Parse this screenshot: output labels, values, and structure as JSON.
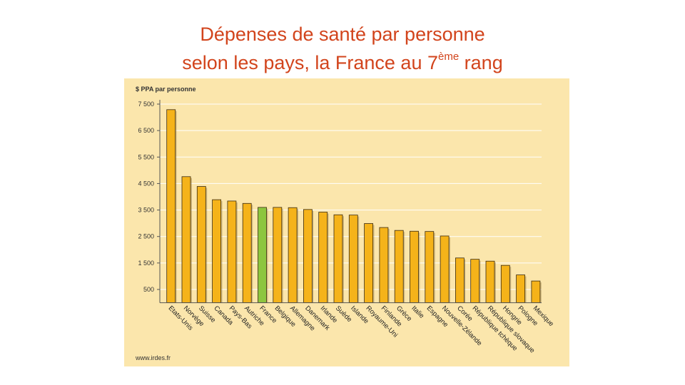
{
  "title": {
    "line1": "Dépenses de santé par personne",
    "line2_pre": "selon les pays, la France au 7",
    "line2_sup": "ème",
    "line2_post": " rang"
  },
  "colors": {
    "background": "#fbe6ac",
    "bar": "#f5b31a",
    "bar_highlight": "#8dc63f",
    "title": "#d2441c"
  },
  "chart_data": {
    "type": "bar",
    "title": "",
    "ylabel": "$ PPA par personne",
    "xlabel": "",
    "ylim": [
      0,
      7500
    ],
    "yticks": [
      "7 500",
      "6 500",
      "5 500",
      "4 500",
      "3 500",
      "2 500",
      "1 500",
      "500"
    ],
    "ytick_values": [
      7500,
      6500,
      5500,
      4500,
      3500,
      2500,
      1500,
      500
    ],
    "grid": true,
    "highlight": "France",
    "categories": [
      "Etats-Unis",
      "Norvège",
      "Suisse",
      "Canada",
      "Pays-Bas",
      "Autriche",
      "France",
      "Belgique",
      "Allemagne",
      "Danemark",
      "Irlande",
      "Suède",
      "Islande",
      "Royaume-Uni",
      "Finlande",
      "Grèce",
      "Italie",
      "Espagne",
      "Nouvelle-Zélande",
      "Corée",
      "République tchèque",
      "République slovaque",
      "Hongrie",
      "Pologne",
      "Mexique"
    ],
    "values": [
      7290,
      4760,
      4390,
      3890,
      3840,
      3750,
      3600,
      3600,
      3590,
      3520,
      3420,
      3320,
      3310,
      2990,
      2840,
      2730,
      2700,
      2690,
      2520,
      1690,
      1640,
      1570,
      1410,
      1050,
      820
    ],
    "source": "www.irdes.fr"
  }
}
